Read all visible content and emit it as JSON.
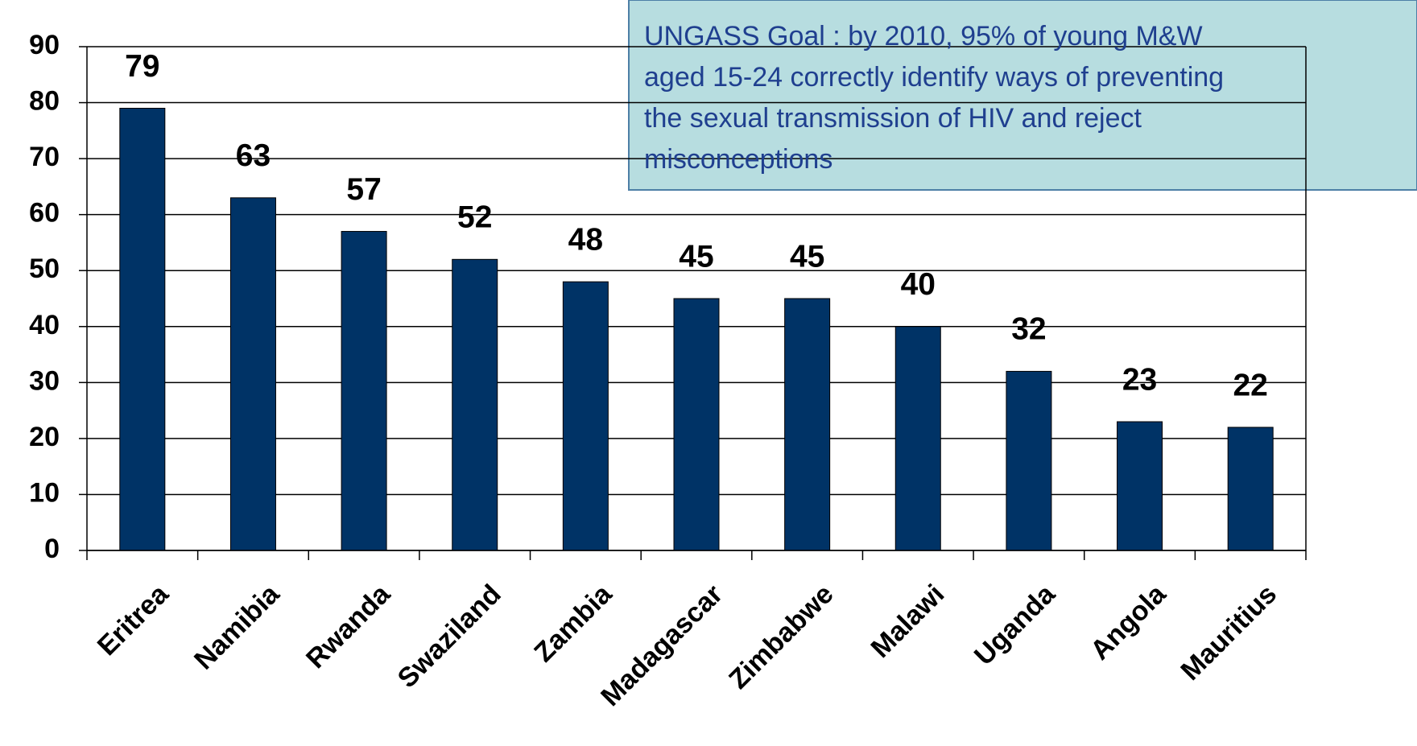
{
  "chart_data": {
    "type": "bar",
    "annotation": [
      "UNGASS Goal : by 2010, 95% of young M&W",
      "aged 15-24 correctly  identify ways of preventing",
      "the sexual transmission of HIV and reject",
      "misconceptions"
    ],
    "categories": [
      "Eritrea",
      "Namibia",
      "Rwanda",
      "Swaziland",
      "Zambia",
      "Madagascar",
      "Zimbabwe",
      "Malawi",
      "Uganda",
      "Angola",
      "Mauritius"
    ],
    "values": [
      79,
      63,
      57,
      52,
      48,
      45,
      45,
      40,
      32,
      23,
      22
    ],
    "color": "#003366",
    "ylim": [
      0,
      90
    ],
    "yticks": [
      0,
      10,
      20,
      30,
      40,
      50,
      60,
      70,
      80,
      90
    ],
    "grid": true
  }
}
